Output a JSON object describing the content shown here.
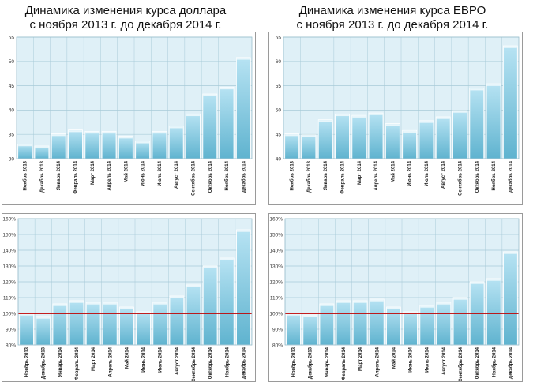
{
  "titles": {
    "usd": {
      "line1": "Динамика изменения курса доллара",
      "line2": "с ноября 2013 г. до декабря 2014 г."
    },
    "eur": {
      "line1": "Динамика изменения курса ЕВРО",
      "line2": "с ноября 2013 г. до декабря 2014 г."
    }
  },
  "colors": {
    "plot_bg": "#dff0f7",
    "grid": "#a8cbd8",
    "bar_top": "#b7e3f3",
    "bar_bottom": "#5fb3cf",
    "bar_edge": "#ffffff",
    "baseline": "#c00000"
  },
  "chart_data": [
    {
      "type": "bar",
      "categories": [
        "Ноябрь 2013",
        "Декабрь 2013",
        "Январь 2014",
        "Февраль 2014",
        "Март 2014",
        "Апрель 2014",
        "Май 2014",
        "Июнь 2014",
        "Июль 2014",
        "Август 2014",
        "Сентябрь 2014",
        "Октябрь 2014",
        "Ноябрь 2014",
        "Декабрь 2014"
      ],
      "values": [
        33.0,
        32.6,
        35.1,
        35.9,
        35.6,
        35.6,
        34.6,
        33.6,
        35.6,
        36.7,
        39.2,
        43.3,
        44.7,
        50.8
      ],
      "ylim": [
        30,
        55
      ],
      "yticks": [
        "30",
        "35",
        "40",
        "45",
        "50",
        "55"
      ],
      "title": "",
      "xlabel": "",
      "ylabel": "",
      "grid": true
    },
    {
      "type": "bar",
      "categories": [
        "Ноябрь 2013",
        "Декабрь 2013",
        "Январь 2014",
        "Февраль 2014",
        "Март 2014",
        "Апрель 2014",
        "Май 2014",
        "Июнь 2014",
        "Июль 2014",
        "Август 2014",
        "Сентябрь 2014",
        "Октябрь 2014",
        "Ноябрь 2014",
        "Декабрь 2014"
      ],
      "values": [
        45.1,
        44.9,
        48.0,
        49.2,
        48.9,
        49.4,
        47.2,
        45.8,
        47.8,
        48.6,
        49.9,
        54.5,
        55.4,
        63.2
      ],
      "ylim": [
        40,
        65
      ],
      "yticks": [
        "40",
        "45",
        "50",
        "55",
        "60",
        "65"
      ],
      "title": "",
      "xlabel": "",
      "ylabel": "",
      "grid": true
    },
    {
      "type": "bar",
      "categories": [
        "Ноябрь 2013",
        "Декабрь 2013",
        "Январь 2014",
        "Февраль 2014",
        "Март 2014",
        "Апрель 2014",
        "Май 2014",
        "Июнь 2014",
        "Июль 2014",
        "Август 2014",
        "Сентябрь 2014",
        "Октябрь 2014",
        "Ноябрь 2014",
        "Декабрь 2014"
      ],
      "values": [
        100,
        98,
        106,
        108,
        107,
        107,
        104,
        101,
        107,
        111,
        118,
        130,
        135,
        153
      ],
      "ylim": [
        80,
        160
      ],
      "yticks": [
        "80%",
        "90%",
        "100%",
        "110%",
        "120%",
        "130%",
        "140%",
        "150%",
        "160%"
      ],
      "reference_line": 100,
      "title": "",
      "xlabel": "",
      "ylabel": "",
      "grid": true
    },
    {
      "type": "bar",
      "categories": [
        "Ноябрь 2013",
        "Декабрь 2013",
        "Январь 2014",
        "Февраль 2014",
        "Март 2014",
        "Апрель 2014",
        "Май 2014",
        "Июнь 2014",
        "Июль 2014",
        "Август 2014",
        "Сентябрь 2014",
        "Октябрь 2014",
        "Ноябрь 2014",
        "Декабрь 2014"
      ],
      "values": [
        100,
        99,
        106,
        108,
        108,
        109,
        104,
        101,
        105,
        107,
        110,
        120,
        122,
        139
      ],
      "ylim": [
        80,
        160
      ],
      "yticks": [
        "80%",
        "90%",
        "100%",
        "110%",
        "120%",
        "130%",
        "140%",
        "150%",
        "160%"
      ],
      "reference_line": 100,
      "title": "",
      "xlabel": "",
      "ylabel": "",
      "grid": true
    }
  ]
}
